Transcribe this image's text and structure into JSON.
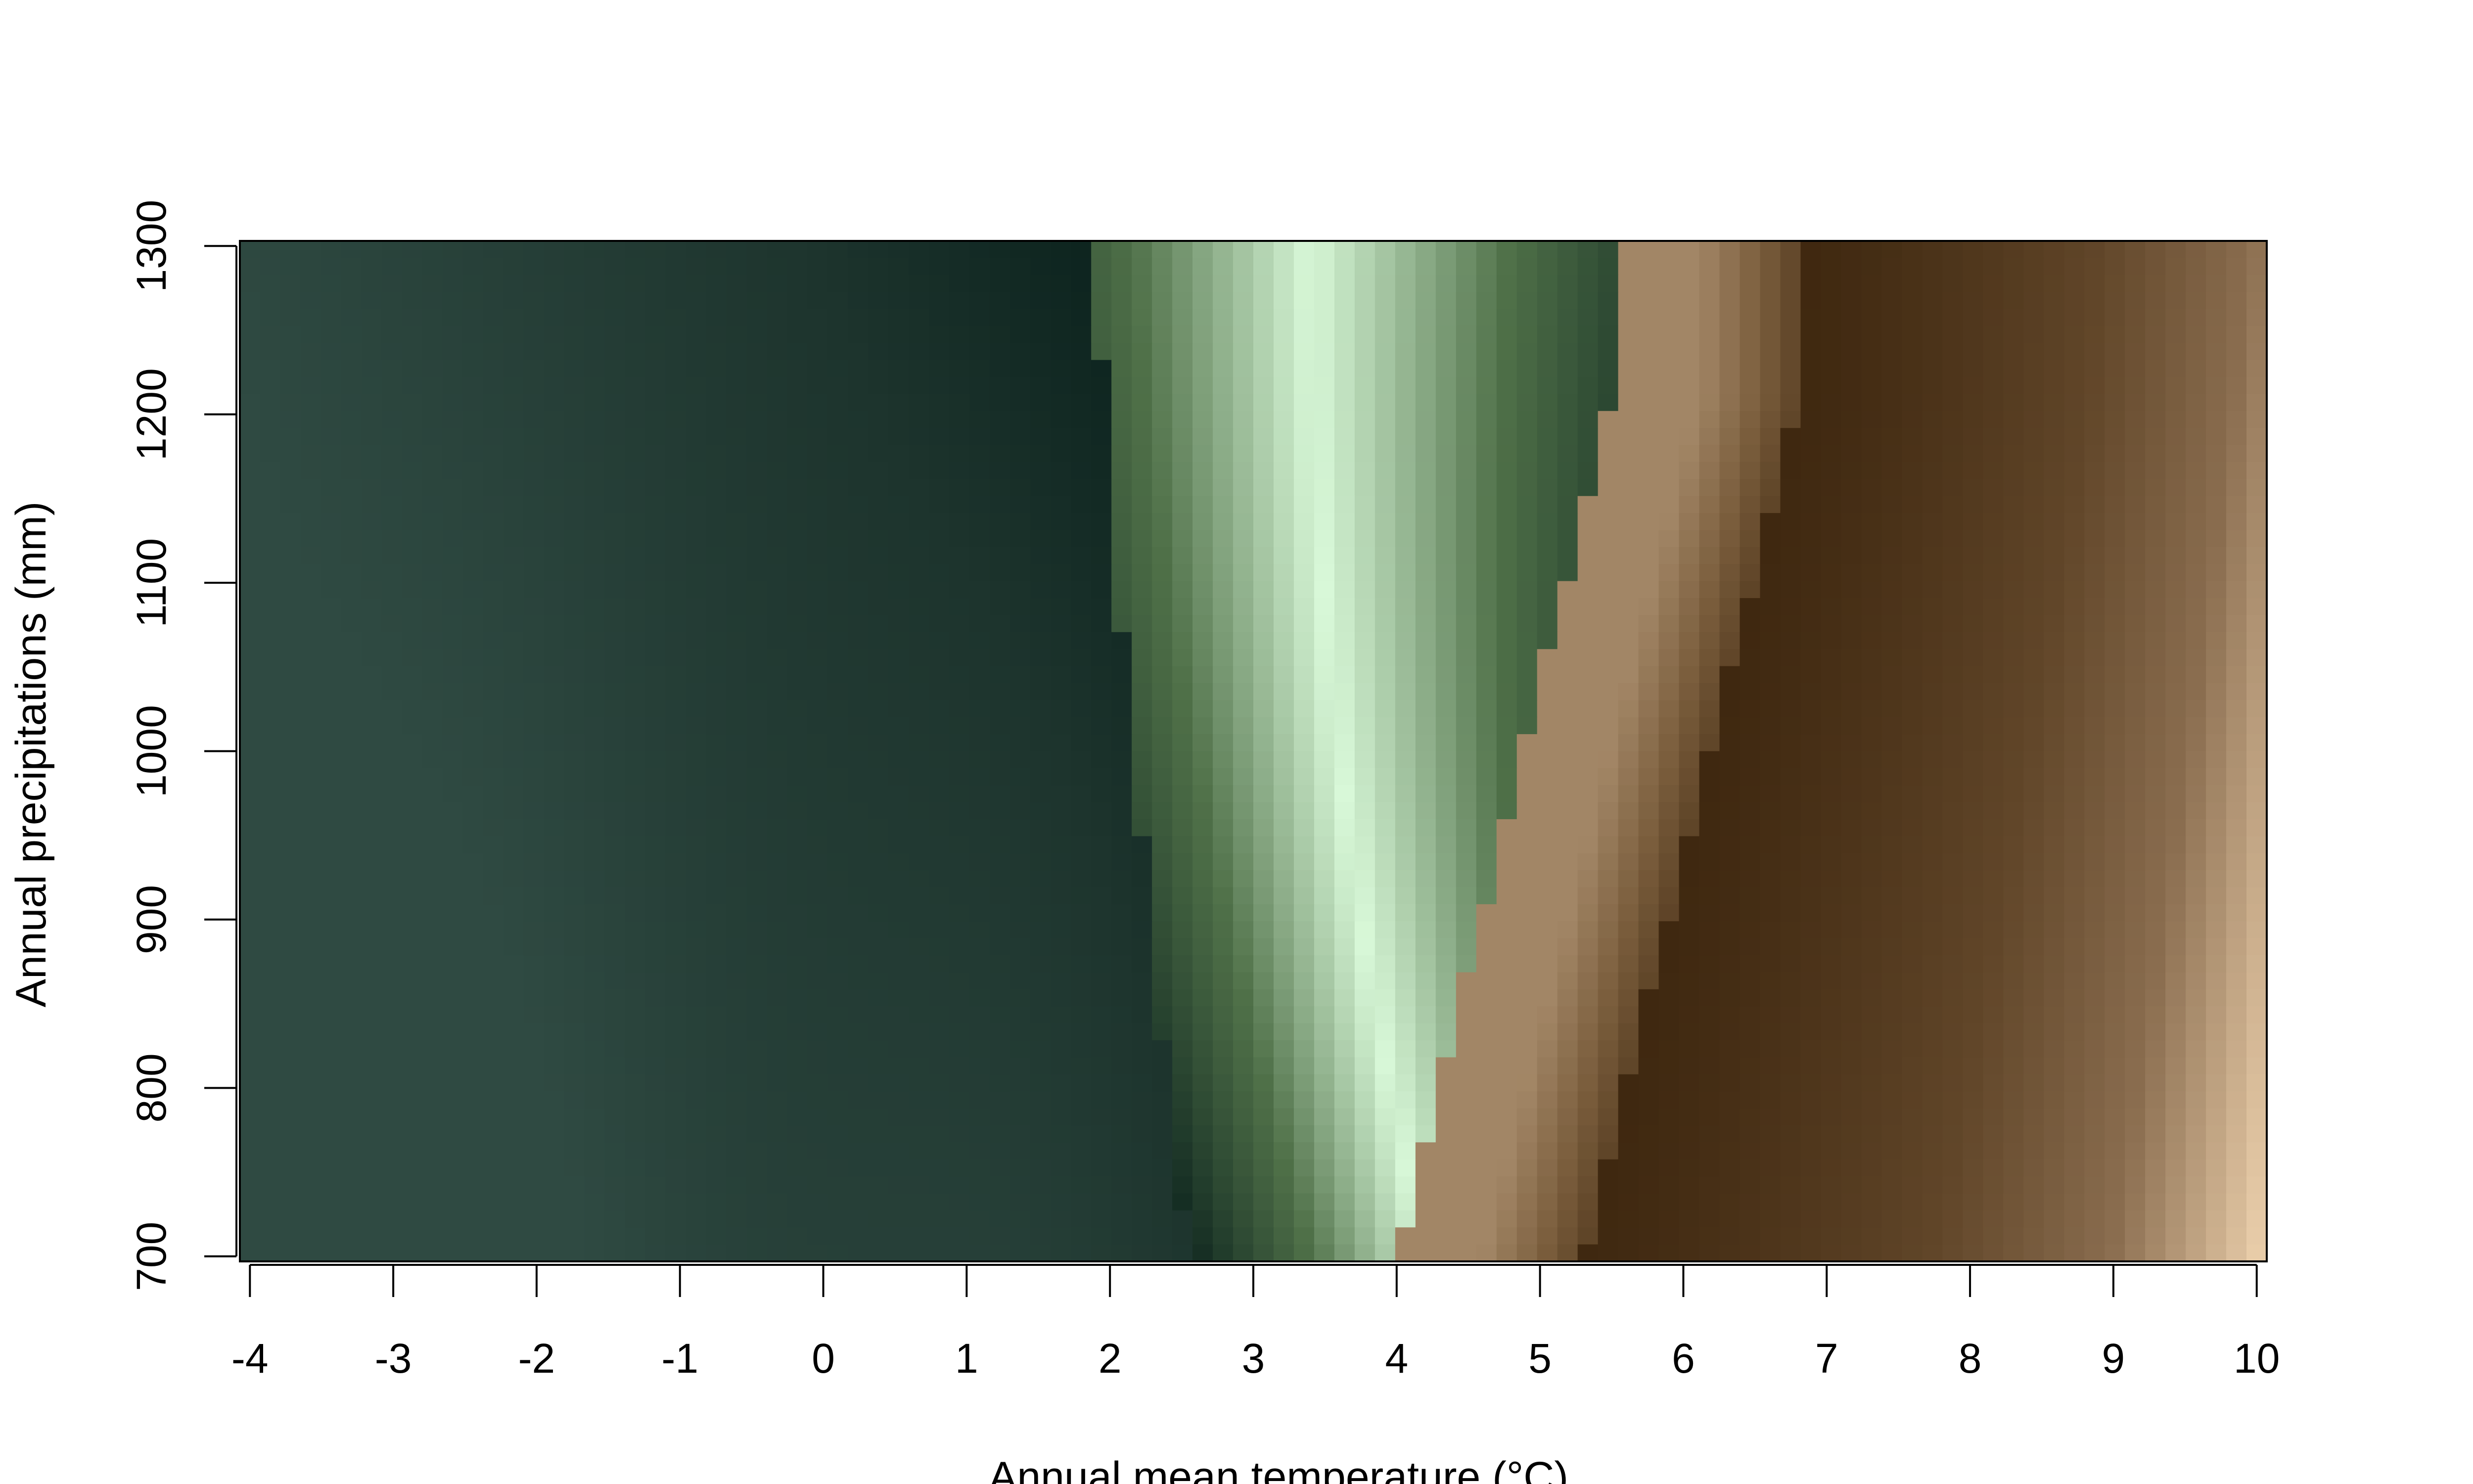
{
  "chart_data": {
    "type": "heatmap",
    "title": "",
    "xlabel": "Annual mean temperature (°C)",
    "ylabel": "Annual precipitations (mm)",
    "xlim": [
      -4.07,
      10.07
    ],
    "ylim": [
      697,
      1303
    ],
    "x_ticks": [
      -4,
      -3,
      -2,
      -1,
      0,
      1,
      2,
      3,
      4,
      5,
      6,
      7,
      8,
      9,
      10
    ],
    "x_tick_labels": [
      "-4",
      "-3",
      "-2",
      "-1",
      "0",
      "1",
      "2",
      "3",
      "4",
      "5",
      "6",
      "7",
      "8",
      "9",
      "10"
    ],
    "y_ticks": [
      700,
      800,
      900,
      1000,
      1100,
      1200,
      1300
    ],
    "y_tick_labels": [
      "700",
      "800",
      "900",
      "1000",
      "1100",
      "1200",
      "1300"
    ],
    "x_cells": 100,
    "y_cells": 60,
    "color_stops": [
      {
        "v": 0.0,
        "color": "#2f4a42"
      },
      {
        "v": 0.22,
        "color": "#1d342d"
      },
      {
        "v": 0.33,
        "color": "#0b221d"
      },
      {
        "v": 0.42,
        "color": "#4f7048"
      },
      {
        "v": 0.5,
        "color": "#d8f8d8"
      },
      {
        "v": 0.58,
        "color": "#8fb094"
      },
      {
        "v": 0.59,
        "color": "#a88c6c"
      },
      {
        "v": 0.67,
        "color": "#7a5d3c"
      },
      {
        "v": 0.76,
        "color": "#3f2810"
      },
      {
        "v": 0.86,
        "color": "#614629"
      },
      {
        "v": 0.93,
        "color": "#8a6d4f"
      },
      {
        "v": 1.0,
        "color": "#f2d6b2"
      }
    ],
    "notes": "Filled level plot; colour is a function of temperature and precipitation. Dark green band near 1-2 °C, pale green crest near 3.5 °C (narrowing toward low precipitation), abrupt switch to brown near 4-5.5 °C, darkest brown near 6 °C, lightening toward 10 °C and low precipitation."
  }
}
